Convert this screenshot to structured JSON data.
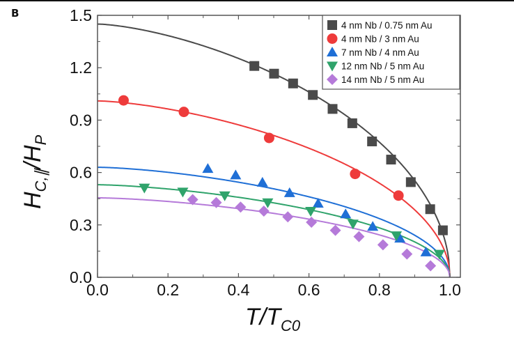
{
  "panel_label": "B",
  "chart_data": {
    "type": "scatter",
    "xlabel": {
      "main": "T/T",
      "sub": "C0"
    },
    "ylabel": {
      "main": "H",
      "sub": "C,∥",
      "sep": "/",
      "main2": "H",
      "sub2": "P"
    },
    "xlim": [
      0.0,
      1.03
    ],
    "ylim": [
      0.0,
      1.5
    ],
    "xticks": [
      "0.0",
      "0.2",
      "0.4",
      "0.6",
      "0.8",
      "1.0"
    ],
    "xtick_values": [
      0,
      0.2,
      0.4,
      0.6,
      0.8,
      1.0
    ],
    "yticks": [
      "0.0",
      "0.3",
      "0.6",
      "0.9",
      "1.2",
      "1.5"
    ],
    "ytick_values": [
      0,
      0.3,
      0.6,
      0.9,
      1.2,
      1.5
    ],
    "legend_position": "top-right",
    "series": [
      {
        "name": "4 nm Nb / 0.75 nm Au",
        "marker": "square",
        "color": "#4a4a4a",
        "fit_y0": 1.45,
        "x": [
          0.445,
          0.501,
          0.555,
          0.611,
          0.667,
          0.723,
          0.779,
          0.833,
          0.889,
          0.944,
          0.98
        ],
        "y": [
          1.21,
          1.166,
          1.11,
          1.044,
          0.964,
          0.882,
          0.778,
          0.674,
          0.545,
          0.39,
          0.269
        ]
      },
      {
        "name": "4 nm Nb / 3 nm Au",
        "marker": "circle",
        "color": "#ee3b3b",
        "fit_y0": 1.01,
        "x": [
          0.074,
          0.245,
          0.487,
          0.731,
          0.854
        ],
        "y": [
          1.013,
          0.947,
          0.798,
          0.592,
          0.468
        ]
      },
      {
        "name": "7 nm Nb / 4 nm Au",
        "marker": "triangle-up",
        "color": "#1f6fd6",
        "fit_y0": 0.63,
        "x": [
          0.313,
          0.392,
          0.468,
          0.545,
          0.626,
          0.704,
          0.781,
          0.858,
          0.932
        ],
        "y": [
          0.622,
          0.585,
          0.543,
          0.483,
          0.423,
          0.362,
          0.29,
          0.223,
          0.144
        ]
      },
      {
        "name": "12 nm Nb / 5 nm Au",
        "marker": "triangle-down",
        "color": "#2fa36b",
        "fit_y0": 0.53,
        "x": [
          0.133,
          0.242,
          0.361,
          0.483,
          0.605,
          0.725,
          0.848,
          0.97
        ],
        "y": [
          0.512,
          0.489,
          0.468,
          0.428,
          0.379,
          0.306,
          0.239,
          0.133
        ]
      },
      {
        "name": "14 nm Nb / 5 nm Au",
        "marker": "diamond",
        "color": "#b57ad9",
        "fit_y0": 0.455,
        "x": [
          0.27,
          0.337,
          0.406,
          0.472,
          0.54,
          0.607,
          0.675,
          0.742,
          0.81,
          0.878,
          0.945
        ],
        "y": [
          0.445,
          0.428,
          0.402,
          0.379,
          0.346,
          0.315,
          0.269,
          0.233,
          0.186,
          0.133,
          0.066
        ]
      }
    ]
  }
}
